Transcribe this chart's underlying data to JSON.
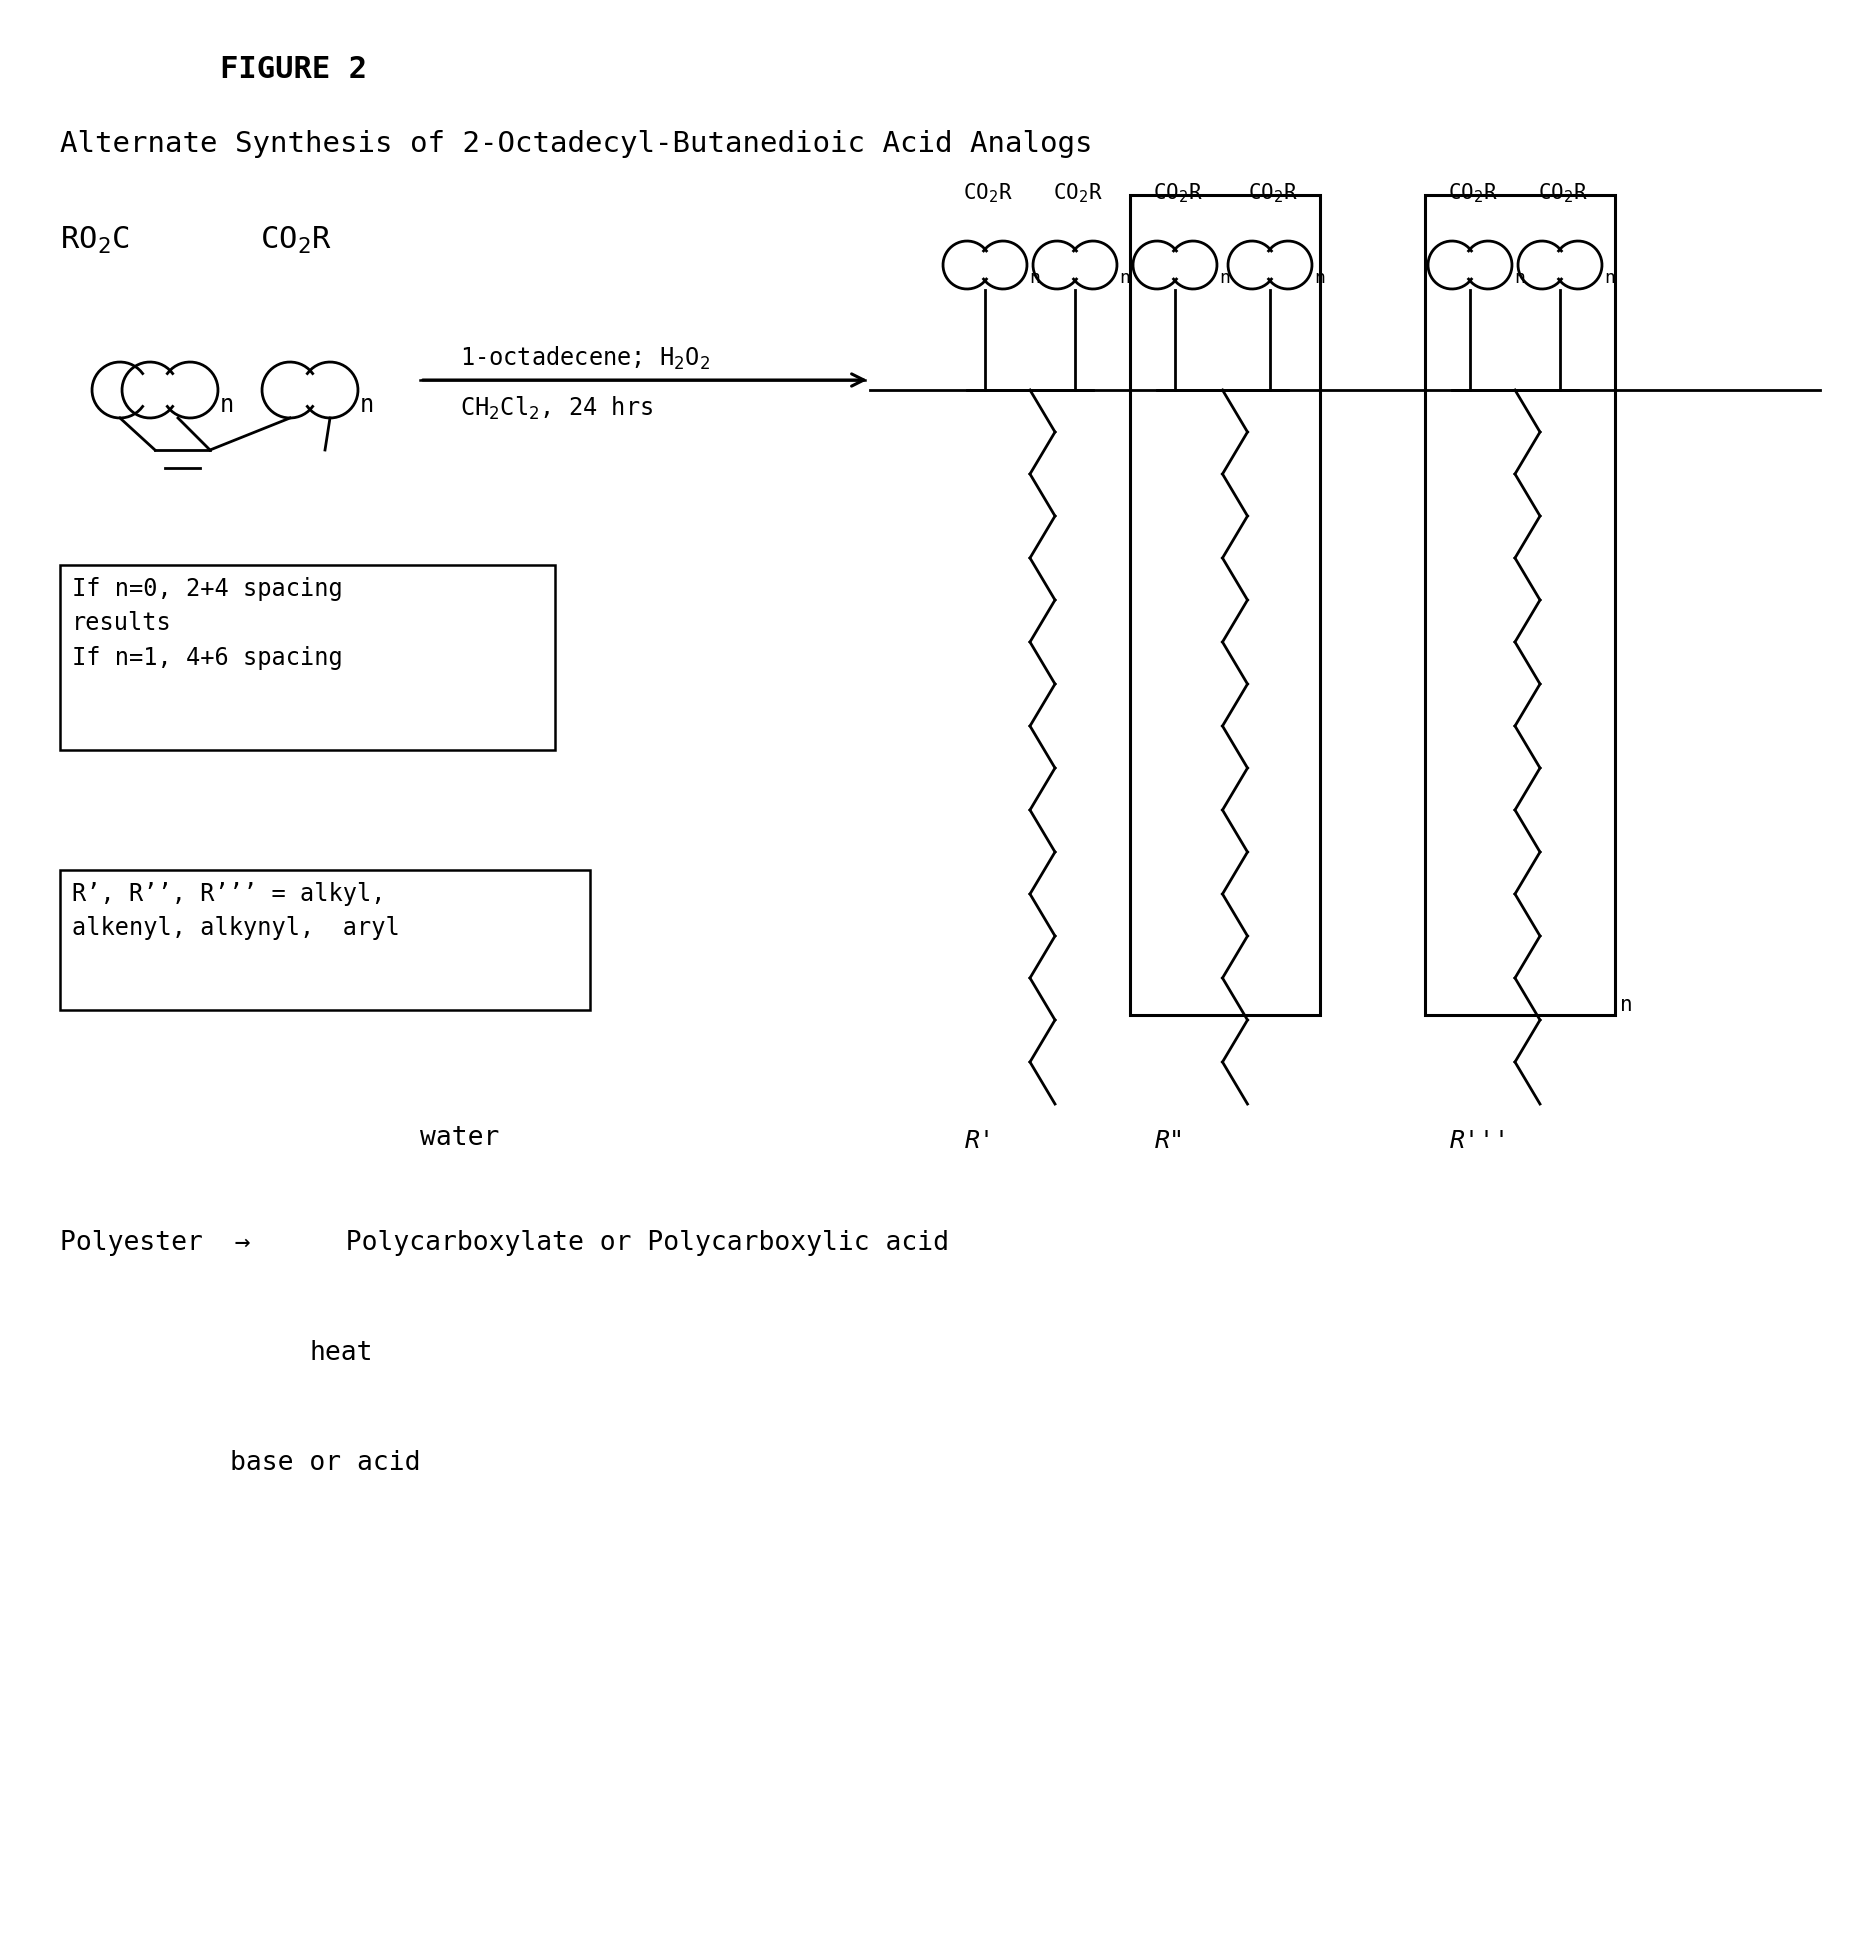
{
  "figure_label": "FIGURE 2",
  "title": "Alternate Synthesis of 2-Octadecyl-Butanedioic Acid Analogs",
  "bg": "#ffffff",
  "fg": "#000000",
  "box1": "If n=0, 2+4 spacing\nresults\nIf n=1, 4+6 spacing",
  "box2": "R’, R’’, R’’’ = alkyl,\nalkenyl, alkynyl,  aryl",
  "water": "water",
  "polyester_line": "Polyester  →      Polycarboxylate or Polycarboxylic acid",
  "heat": "heat",
  "base": "base or acid"
}
